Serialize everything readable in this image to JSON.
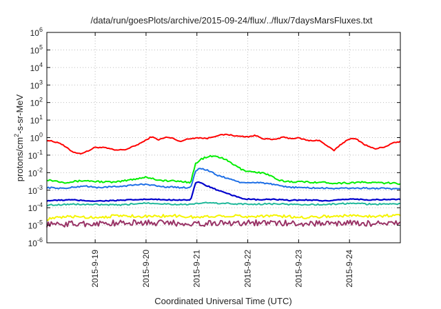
{
  "chart_data": {
    "type": "line",
    "title": "/data/run/goesPlots/archive/2015-09-24/flux/../flux/7daysMarsFluxes.txt",
    "xlabel": "Coordinated Universal Time (UTC)",
    "ylabel": {
      "pre": "protons/cm",
      "sup": "2",
      "post": "-s-sr-MeV"
    },
    "yscale": "log",
    "ylim_exp": [
      -6,
      6
    ],
    "y_ticks": [
      {
        "base": "10",
        "exp": "-6"
      },
      {
        "base": "10",
        "exp": "-5"
      },
      {
        "base": "10",
        "exp": "-4"
      },
      {
        "base": "10",
        "exp": "-3"
      },
      {
        "base": "10",
        "exp": "-2"
      },
      {
        "base": "10",
        "exp": "-1"
      },
      {
        "base": "10",
        "exp": "0"
      },
      {
        "base": "10",
        "exp": "1"
      },
      {
        "base": "10",
        "exp": "2"
      },
      {
        "base": "10",
        "exp": "3"
      },
      {
        "base": "10",
        "exp": "4"
      },
      {
        "base": "10",
        "exp": "5"
      },
      {
        "base": "10",
        "exp": "6"
      }
    ],
    "x_ticks": [
      "2015-9-19",
      "2015-9-20",
      "2015-9-21",
      "2015-9-22",
      "2015-9-23",
      "2015-9-24"
    ],
    "xlim_days": [
      18.05,
      25.0
    ],
    "x_tick_days": [
      19,
      20,
      21,
      22,
      23,
      24
    ],
    "grid": true,
    "series": [
      {
        "color": "#ff0000",
        "width": 2.0,
        "jitter": 0.03,
        "points": [
          [
            18.05,
            -0.15
          ],
          [
            18.3,
            -0.3
          ],
          [
            18.55,
            -0.8
          ],
          [
            18.7,
            -0.92
          ],
          [
            18.85,
            -0.78
          ],
          [
            19.0,
            -0.55
          ],
          [
            19.2,
            -0.58
          ],
          [
            19.4,
            -0.72
          ],
          [
            19.6,
            -0.68
          ],
          [
            19.8,
            -0.45
          ],
          [
            20.0,
            -0.15
          ],
          [
            20.1,
            0.05
          ],
          [
            20.25,
            -0.12
          ],
          [
            20.4,
            0.02
          ],
          [
            20.55,
            -0.05
          ],
          [
            20.65,
            -0.22
          ],
          [
            20.8,
            -0.1
          ],
          [
            20.9,
            -0.05
          ],
          [
            21.0,
            0.0
          ],
          [
            21.2,
            -0.05
          ],
          [
            21.4,
            0.12
          ],
          [
            21.6,
            0.18
          ],
          [
            21.8,
            0.08
          ],
          [
            22.0,
            0.05
          ],
          [
            22.15,
            0.12
          ],
          [
            22.3,
            -0.05
          ],
          [
            22.5,
            -0.12
          ],
          [
            22.7,
            0.02
          ],
          [
            22.85,
            -0.05
          ],
          [
            23.0,
            -0.02
          ],
          [
            23.2,
            -0.18
          ],
          [
            23.4,
            -0.15
          ],
          [
            23.55,
            -0.45
          ],
          [
            23.7,
            -0.75
          ],
          [
            23.8,
            -0.45
          ],
          [
            24.0,
            -0.05
          ],
          [
            24.15,
            -0.1
          ],
          [
            24.3,
            -0.4
          ],
          [
            24.5,
            -0.65
          ],
          [
            24.7,
            -0.52
          ],
          [
            24.85,
            -0.32
          ],
          [
            25.0,
            -0.22
          ]
        ]
      },
      {
        "color": "#00ee00",
        "width": 2.0,
        "jitter": 0.05,
        "points": [
          [
            18.05,
            -2.4
          ],
          [
            18.4,
            -2.55
          ],
          [
            18.8,
            -2.45
          ],
          [
            19.0,
            -2.5
          ],
          [
            19.4,
            -2.55
          ],
          [
            19.8,
            -2.35
          ],
          [
            20.0,
            -2.25
          ],
          [
            20.3,
            -2.45
          ],
          [
            20.7,
            -2.5
          ],
          [
            20.88,
            -2.55
          ],
          [
            20.97,
            -1.5
          ],
          [
            21.1,
            -1.2
          ],
          [
            21.3,
            -1.05
          ],
          [
            21.5,
            -1.15
          ],
          [
            21.7,
            -1.5
          ],
          [
            21.9,
            -1.85
          ],
          [
            22.1,
            -1.95
          ],
          [
            22.25,
            -2.0
          ],
          [
            22.4,
            -2.1
          ],
          [
            22.6,
            -2.45
          ],
          [
            22.8,
            -2.5
          ],
          [
            23.0,
            -2.52
          ],
          [
            23.4,
            -2.55
          ],
          [
            23.8,
            -2.6
          ],
          [
            24.2,
            -2.55
          ],
          [
            24.6,
            -2.58
          ],
          [
            25.0,
            -2.62
          ]
        ]
      },
      {
        "color": "#1e6fe6",
        "width": 2.0,
        "jitter": 0.04,
        "points": [
          [
            18.05,
            -2.85
          ],
          [
            18.4,
            -2.9
          ],
          [
            18.8,
            -2.75
          ],
          [
            19.0,
            -2.85
          ],
          [
            19.4,
            -2.8
          ],
          [
            19.8,
            -2.7
          ],
          [
            20.0,
            -2.65
          ],
          [
            20.3,
            -2.8
          ],
          [
            20.7,
            -2.85
          ],
          [
            20.88,
            -2.85
          ],
          [
            20.97,
            -1.9
          ],
          [
            21.05,
            -1.75
          ],
          [
            21.2,
            -1.85
          ],
          [
            21.4,
            -2.15
          ],
          [
            21.7,
            -2.4
          ],
          [
            21.9,
            -2.6
          ],
          [
            22.2,
            -2.55
          ],
          [
            22.4,
            -2.62
          ],
          [
            22.7,
            -2.8
          ],
          [
            23.0,
            -2.85
          ],
          [
            23.4,
            -2.88
          ],
          [
            23.8,
            -2.9
          ],
          [
            24.2,
            -2.88
          ],
          [
            24.6,
            -2.9
          ],
          [
            25.0,
            -2.95
          ]
        ]
      },
      {
        "color": "#0000cc",
        "width": 2.2,
        "jitter": 0.03,
        "points": [
          [
            18.05,
            -3.6
          ],
          [
            18.5,
            -3.55
          ],
          [
            19.0,
            -3.62
          ],
          [
            19.5,
            -3.58
          ],
          [
            20.0,
            -3.52
          ],
          [
            20.5,
            -3.55
          ],
          [
            20.88,
            -3.55
          ],
          [
            20.97,
            -2.6
          ],
          [
            21.05,
            -2.55
          ],
          [
            21.2,
            -2.75
          ],
          [
            21.45,
            -3.05
          ],
          [
            21.7,
            -3.3
          ],
          [
            21.95,
            -3.5
          ],
          [
            22.2,
            -3.55
          ],
          [
            22.5,
            -3.52
          ],
          [
            22.8,
            -3.58
          ],
          [
            23.2,
            -3.55
          ],
          [
            23.6,
            -3.62
          ],
          [
            24.0,
            -3.5
          ],
          [
            24.4,
            -3.55
          ],
          [
            25.0,
            -3.52
          ]
        ]
      },
      {
        "color": "#20b89a",
        "width": 2.0,
        "jitter": 0.04,
        "points": [
          [
            18.05,
            -3.85
          ],
          [
            18.5,
            -3.8
          ],
          [
            19.0,
            -3.82
          ],
          [
            19.5,
            -3.85
          ],
          [
            20.0,
            -3.72
          ],
          [
            20.5,
            -3.8
          ],
          [
            20.9,
            -3.82
          ],
          [
            21.1,
            -3.72
          ],
          [
            21.5,
            -3.75
          ],
          [
            22.0,
            -3.8
          ],
          [
            22.5,
            -3.78
          ],
          [
            23.0,
            -3.82
          ],
          [
            23.5,
            -3.82
          ],
          [
            24.0,
            -3.75
          ],
          [
            24.5,
            -3.8
          ],
          [
            25.0,
            -3.78
          ]
        ]
      },
      {
        "color": "#f5f500",
        "width": 2.0,
        "jitter": 0.08,
        "points": [
          [
            18.05,
            -4.65
          ],
          [
            18.5,
            -4.5
          ],
          [
            19.0,
            -4.55
          ],
          [
            19.5,
            -4.45
          ],
          [
            20.0,
            -4.5
          ],
          [
            20.5,
            -4.45
          ],
          [
            21.0,
            -4.55
          ],
          [
            21.5,
            -4.45
          ],
          [
            22.0,
            -4.5
          ],
          [
            22.5,
            -4.45
          ],
          [
            23.0,
            -4.55
          ],
          [
            23.5,
            -4.5
          ],
          [
            24.0,
            -4.45
          ],
          [
            24.5,
            -4.48
          ],
          [
            25.0,
            -4.42
          ]
        ]
      },
      {
        "color": "#993366",
        "width": 2.0,
        "jitter": 0.17,
        "points": [
          [
            18.05,
            -4.95
          ],
          [
            19.0,
            -4.9
          ],
          [
            20.0,
            -4.85
          ],
          [
            21.0,
            -4.9
          ],
          [
            22.0,
            -4.85
          ],
          [
            23.0,
            -4.9
          ],
          [
            24.0,
            -4.88
          ],
          [
            25.0,
            -4.92
          ]
        ]
      }
    ]
  }
}
